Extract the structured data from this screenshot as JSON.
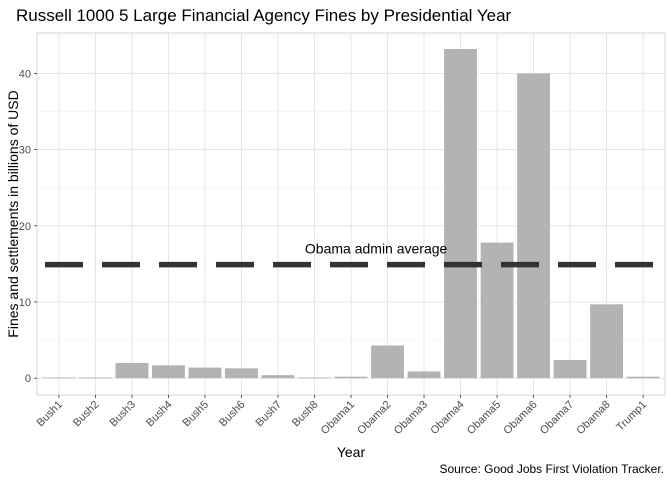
{
  "chart_data": {
    "type": "bar",
    "title": "Russell 1000 5 Large Financial Agency Fines by Presidential Year",
    "xlabel": "Year",
    "ylabel": "Fines and settlements in billions of USD",
    "caption": "Source: Good Jobs First Violation Tracker.",
    "categories": [
      "Bush1",
      "Bush2",
      "Bush3",
      "Bush4",
      "Bush5",
      "Bush6",
      "Bush7",
      "Bush8",
      "Obama1",
      "Obama2",
      "Obama3",
      "Obama4",
      "Obama5",
      "Obama6",
      "Obama7",
      "Obama8",
      "Trump1"
    ],
    "values": [
      0.0,
      0.1,
      2.0,
      1.7,
      1.4,
      1.3,
      0.4,
      0.05,
      0.2,
      4.3,
      0.9,
      43.2,
      17.8,
      40.0,
      2.4,
      9.7,
      0.2
    ],
    "ylim": [
      -2.2,
      45.3
    ],
    "yticks": [
      0,
      10,
      20,
      30,
      40
    ],
    "bar_color": "#b3b3b3",
    "reference_line": {
      "value": 14.9,
      "label": "Obama admin average",
      "style": "dashed",
      "color": "#333333"
    },
    "grid": true,
    "legend": "none"
  }
}
